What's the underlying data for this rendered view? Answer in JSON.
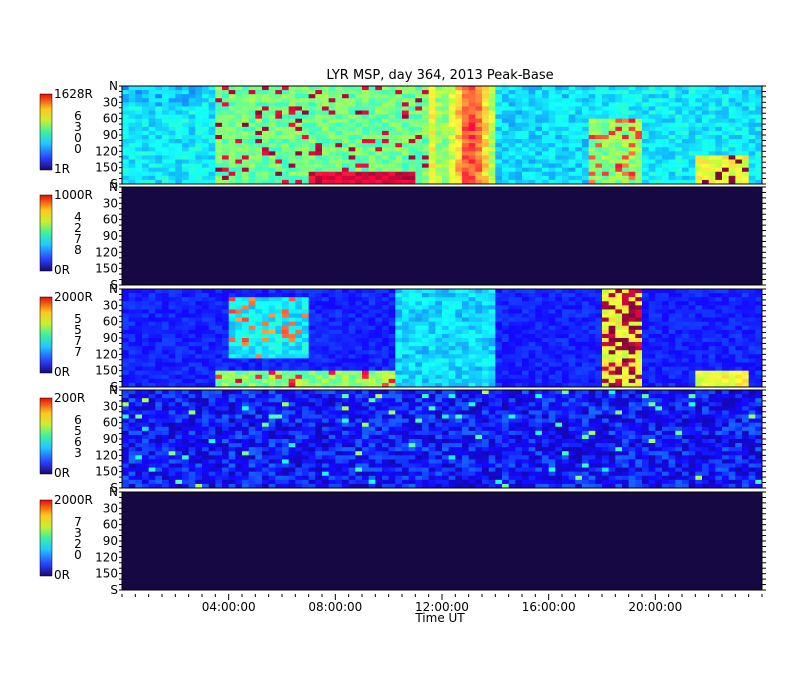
{
  "chart_data": {
    "type": "heatmap",
    "title": "LYR MSP, day 364, 2013 Peak-Base",
    "xlabel": "Time UT",
    "x_ticks": [
      "04:00:00",
      "08:00:00",
      "12:00:00",
      "16:00:00",
      "20:00:00"
    ],
    "x_range_hours": [
      0,
      24
    ],
    "colormap": "jet",
    "y_range_deg": [
      0,
      180
    ],
    "panels": [
      {
        "name": "6300",
        "colorbar_min": "1R",
        "colorbar_max": "1628R",
        "wavelength_digits": [
          "6",
          "3",
          "0",
          "0"
        ],
        "y_ticks": [
          "N",
          "30",
          "60",
          "90",
          "120",
          "150",
          "S"
        ]
      },
      {
        "name": "4278",
        "colorbar_min": "0R",
        "colorbar_max": "1000R",
        "wavelength_digits": [
          "4",
          "2",
          "7",
          "8"
        ],
        "y_ticks": [
          "N",
          "30",
          "60",
          "90",
          "120",
          "150",
          "S"
        ]
      },
      {
        "name": "5577",
        "colorbar_min": "0R",
        "colorbar_max": "2000R",
        "wavelength_digits": [
          "5",
          "5",
          "7",
          "7"
        ],
        "y_ticks": [
          "N",
          "30",
          "60",
          "90",
          "120",
          "150",
          "S"
        ]
      },
      {
        "name": "6563",
        "colorbar_min": "0R",
        "colorbar_max": "200R",
        "wavelength_digits": [
          "6",
          "5",
          "6",
          "3"
        ],
        "y_ticks": [
          "N",
          "30",
          "60",
          "90",
          "120",
          "150",
          "S"
        ]
      },
      {
        "name": "7320",
        "colorbar_min": "0R",
        "colorbar_max": "2000R",
        "wavelength_digits": [
          "7",
          "3",
          "2",
          "0"
        ],
        "y_ticks": [
          "N",
          "30",
          "60",
          "90",
          "120",
          "150",
          "S"
        ]
      }
    ]
  }
}
